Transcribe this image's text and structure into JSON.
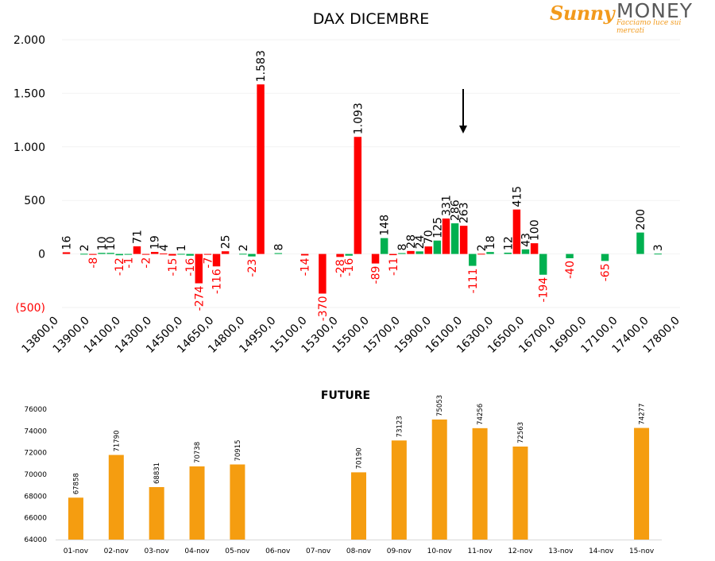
{
  "logo": {
    "brand_a": "Sunny",
    "brand_b": "MONEY",
    "tagline": "Facciamo luce sui mercati",
    "brand_color": "#f29a1c"
  },
  "colors": {
    "positive": "#00b050",
    "negative": "#ff0000",
    "future": "#f59d10",
    "axis_text": "#000000",
    "neg_tick_text": "#ff0000"
  },
  "chart_data": [
    {
      "type": "bar",
      "title": "DAX DICEMBRE",
      "xlabel": "",
      "ylabel": "",
      "ylim": [
        -500,
        2000
      ],
      "y_ticks": [
        {
          "value": 2000,
          "label": "2.000"
        },
        {
          "value": 1500,
          "label": "1.500"
        },
        {
          "value": 1000,
          "label": "1.000"
        },
        {
          "value": 500,
          "label": "500"
        },
        {
          "value": 0,
          "label": "0"
        },
        {
          "value": -500,
          "label": "(500)"
        }
      ],
      "x_tick_labels": [
        "13800,0",
        "13900,0",
        "14100,0",
        "14300,0",
        "14500,0",
        "14650,0",
        "14800,0",
        "14950,0",
        "15100,0",
        "15300,0",
        "15500,0",
        "15700,0",
        "15900,0",
        "16100,0",
        "16300,0",
        "16500,0",
        "16700,0",
        "16900,0",
        "17100,0",
        "17400,0",
        "17800,0"
      ],
      "annotation": "downward arrow pointing at the 16100,0 strike",
      "bars": [
        {
          "slot": 0,
          "value": 16,
          "label": "16",
          "color": "negative"
        },
        {
          "slot": 2,
          "value": 2,
          "label": "2",
          "color": "positive"
        },
        {
          "slot": 3,
          "value": -8,
          "label": "-8",
          "color": "negative"
        },
        {
          "slot": 4,
          "value": 10,
          "label": "10",
          "color": "positive"
        },
        {
          "slot": 5,
          "value": 10,
          "label": "10",
          "color": "positive"
        },
        {
          "slot": 6,
          "value": -12,
          "label": "-12",
          "color": "positive"
        },
        {
          "slot": 7,
          "value": -1,
          "label": "-1",
          "color": "positive"
        },
        {
          "slot": 8,
          "value": 71,
          "label": "71",
          "color": "negative"
        },
        {
          "slot": 9,
          "value": -2,
          "label": "-2",
          "color": "negative"
        },
        {
          "slot": 10,
          "value": 19,
          "label": "19",
          "color": "negative"
        },
        {
          "slot": 11,
          "value": 4,
          "label": "4",
          "color": "negative"
        },
        {
          "slot": 12,
          "value": -15,
          "label": "-15",
          "color": "negative"
        },
        {
          "slot": 13,
          "value": 1,
          "label": "1",
          "color": "positive"
        },
        {
          "slot": 14,
          "value": -16,
          "label": "-16",
          "color": "positive"
        },
        {
          "slot": 15,
          "value": -274,
          "label": "-274",
          "color": "negative"
        },
        {
          "slot": 16,
          "value": -7,
          "label": "-7",
          "color": "negative"
        },
        {
          "slot": 17,
          "value": -116,
          "label": "-116",
          "color": "negative"
        },
        {
          "slot": 18,
          "value": 25,
          "label": "25",
          "color": "negative"
        },
        {
          "slot": 20,
          "value": 2,
          "label": "2",
          "color": "positive"
        },
        {
          "slot": 21,
          "value": -23,
          "label": "-23",
          "color": "positive"
        },
        {
          "slot": 22,
          "value": 1583,
          "label": "1.583",
          "color": "negative"
        },
        {
          "slot": 24,
          "value": 8,
          "label": "8",
          "color": "positive"
        },
        {
          "slot": 27,
          "value": -14,
          "label": "-14",
          "color": "negative"
        },
        {
          "slot": 29,
          "value": -370,
          "label": "-370",
          "color": "negative"
        },
        {
          "slot": 31,
          "value": -28,
          "label": "-28",
          "color": "negative"
        },
        {
          "slot": 32,
          "value": -16,
          "label": "-16",
          "color": "positive"
        },
        {
          "slot": 33,
          "value": 1093,
          "label": "1.093",
          "color": "negative"
        },
        {
          "slot": 35,
          "value": -89,
          "label": "-89",
          "color": "negative"
        },
        {
          "slot": 36,
          "value": 148,
          "label": "148",
          "color": "positive"
        },
        {
          "slot": 37,
          "value": -11,
          "label": "-11",
          "color": "negative"
        },
        {
          "slot": 38,
          "value": 8,
          "label": "8",
          "color": "positive"
        },
        {
          "slot": 39,
          "value": 28,
          "label": "28",
          "color": "negative"
        },
        {
          "slot": 40,
          "value": 24,
          "label": "24",
          "color": "positive"
        },
        {
          "slot": 41,
          "value": 70,
          "label": "70",
          "color": "negative"
        },
        {
          "slot": 42,
          "value": 125,
          "label": "125",
          "color": "positive"
        },
        {
          "slot": 43,
          "value": 331,
          "label": "331",
          "color": "negative"
        },
        {
          "slot": 44,
          "value": 286,
          "label": "286",
          "color": "positive"
        },
        {
          "slot": 45,
          "value": 263,
          "label": "263",
          "color": "negative"
        },
        {
          "slot": 46,
          "value": -111,
          "label": "-111",
          "color": "positive"
        },
        {
          "slot": 47,
          "value": 2,
          "label": "2",
          "color": "negative"
        },
        {
          "slot": 48,
          "value": 18,
          "label": "18",
          "color": "positive"
        },
        {
          "slot": 50,
          "value": 12,
          "label": "12",
          "color": "positive"
        },
        {
          "slot": 51,
          "value": 415,
          "label": "415",
          "color": "negative"
        },
        {
          "slot": 52,
          "value": 43,
          "label": "43",
          "color": "positive"
        },
        {
          "slot": 53,
          "value": 100,
          "label": "100",
          "color": "negative"
        },
        {
          "slot": 54,
          "value": -194,
          "label": "-194",
          "color": "positive"
        },
        {
          "slot": 57,
          "value": -40,
          "label": "-40",
          "color": "positive"
        },
        {
          "slot": 61,
          "value": -65,
          "label": "-65",
          "color": "positive"
        },
        {
          "slot": 65,
          "value": 200,
          "label": "200",
          "color": "positive"
        },
        {
          "slot": 67,
          "value": 3,
          "label": "3",
          "color": "positive"
        }
      ]
    },
    {
      "type": "bar",
      "title": "FUTURE",
      "xlabel": "",
      "ylabel": "",
      "ylim": [
        64000,
        76000
      ],
      "y_ticks": [
        64000,
        66000,
        68000,
        70000,
        72000,
        74000,
        76000
      ],
      "categories": [
        "01-nov",
        "02-nov",
        "03-nov",
        "04-nov",
        "05-nov",
        "06-nov",
        "07-nov",
        "08-nov",
        "09-nov",
        "10-nov",
        "11-nov",
        "12-nov",
        "13-nov",
        "14-nov",
        "15-nov"
      ],
      "values": [
        67858,
        71790,
        68831,
        70738,
        70915,
        null,
        null,
        70190,
        73123,
        75053,
        74256,
        72563,
        null,
        null,
        74277
      ],
      "labels": [
        "67858",
        "71790",
        "68831",
        "70738",
        "70915",
        "",
        "",
        "70190",
        "73123",
        "75053",
        "74256",
        "72563",
        "",
        "",
        "74277"
      ]
    }
  ]
}
